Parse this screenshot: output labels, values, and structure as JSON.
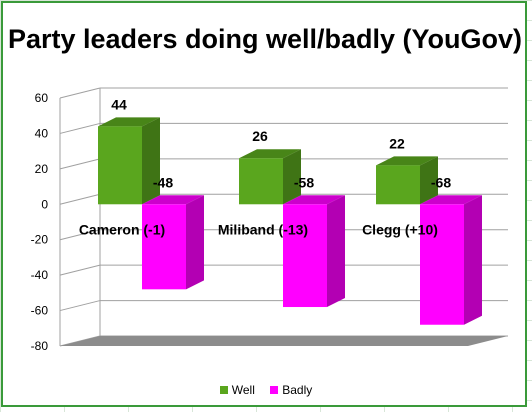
{
  "chart_data": {
    "type": "bar",
    "title": "Party leaders doing well/badly (YouGov)",
    "categories": [
      "Cameron (-1)",
      "Miliband (-13)",
      "Clegg (+10)"
    ],
    "series": [
      {
        "name": "Well",
        "values": [
          44,
          26,
          22
        ],
        "color": "#5aa61e"
      },
      {
        "name": "Badly",
        "values": [
          -48,
          -58,
          -68
        ],
        "color": "#ff00ff"
      }
    ],
    "ylim": [
      -80,
      60
    ],
    "yticks": [
      60,
      40,
      20,
      0,
      -20,
      -40,
      -60,
      -80
    ],
    "grid": true,
    "legend_position": "bottom",
    "data_labels": true
  }
}
